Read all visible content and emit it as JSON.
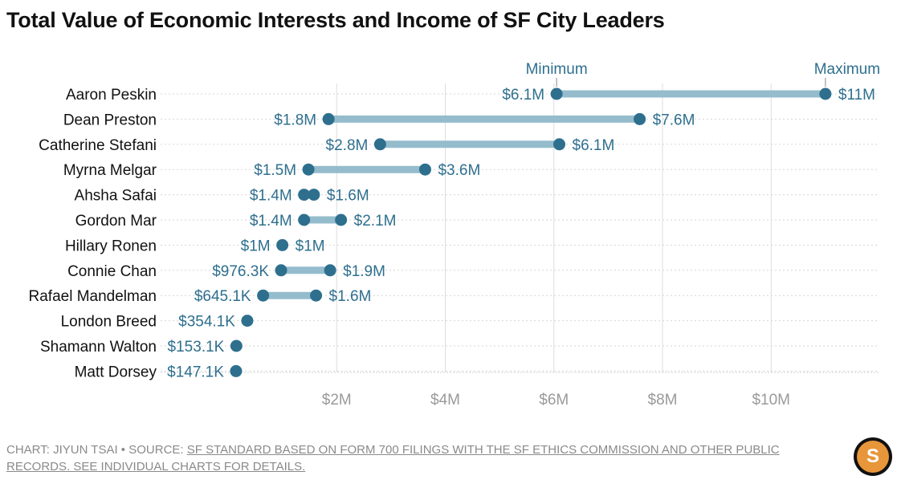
{
  "title": "Total Value of Economic Interests and Income of SF City Leaders",
  "footer": {
    "credit": "CHART: JIYUN TSAI • SOURCE: ",
    "source": "SF STANDARD BASED ON FORM 700 FILINGS WITH THE SF ETHICS COMMISSION AND OTHER PUBLIC RECORDS. SEE INDIVIDUAL CHARTS FOR DETAILS."
  },
  "logo": {
    "icon": "sf-standard-logo-icon",
    "letter": "S"
  },
  "colors": {
    "dot": "#2e6f8e",
    "bar": "#94bccc",
    "label": "#2e6f8e",
    "axis_text": "#9a9a9a",
    "grid": "#dddddd"
  },
  "chart_data": {
    "type": "dumbbell",
    "title": "Total Value of Economic Interests and Income of SF City Leaders",
    "legend": {
      "min_label": "Minimum",
      "max_label": "Maximum",
      "placement": "top, above first row"
    },
    "x_ticks": [
      {
        "value": 2000000,
        "label": "$2M"
      },
      {
        "value": 4000000,
        "label": "$4M"
      },
      {
        "value": 6000000,
        "label": "$6M"
      },
      {
        "value": 8000000,
        "label": "$8M"
      },
      {
        "value": 10000000,
        "label": "$10M"
      }
    ],
    "xlim": [
      0,
      11600000
    ],
    "grid": "vertical major gridlines, dotted row guides",
    "rows": [
      {
        "name": "Aaron Peskin",
        "min": 6050000,
        "max": 11000000,
        "min_label": "$6.1M",
        "max_label": "$11M"
      },
      {
        "name": "Dean Preston",
        "min": 1850000,
        "max": 7580000,
        "min_label": "$1.8M",
        "max_label": "$7.6M"
      },
      {
        "name": "Catherine Stefani",
        "min": 2800000,
        "max": 6100000,
        "min_label": "$2.8M",
        "max_label": "$6.1M"
      },
      {
        "name": "Myrna Melgar",
        "min": 1480000,
        "max": 3630000,
        "min_label": "$1.5M",
        "max_label": "$3.6M"
      },
      {
        "name": "Ahsha Safai",
        "min": 1400000,
        "max": 1580000,
        "min_label": "$1.4M",
        "max_label": "$1.6M"
      },
      {
        "name": "Gordon Mar",
        "min": 1400000,
        "max": 2080000,
        "min_label": "$1.4M",
        "max_label": "$2.1M"
      },
      {
        "name": "Hillary Ronen",
        "min": 1000000,
        "max": 1000000,
        "min_label": "$1M",
        "max_label": "$1M"
      },
      {
        "name": "Connie Chan",
        "min": 976300,
        "max": 1880000,
        "min_label": "$976.3K",
        "max_label": "$1.9M"
      },
      {
        "name": "Rafael Mandelman",
        "min": 645100,
        "max": 1620000,
        "min_label": "$645.1K",
        "max_label": "$1.6M"
      },
      {
        "name": "London Breed",
        "min": 354100,
        "max": 354100,
        "min_label": "$354.1K",
        "max_label": null
      },
      {
        "name": "Shamann Walton",
        "min": 153100,
        "max": 153100,
        "min_label": "$153.1K",
        "max_label": null
      },
      {
        "name": "Matt Dorsey",
        "min": 147100,
        "max": 147100,
        "min_label": "$147.1K",
        "max_label": null
      }
    ]
  }
}
